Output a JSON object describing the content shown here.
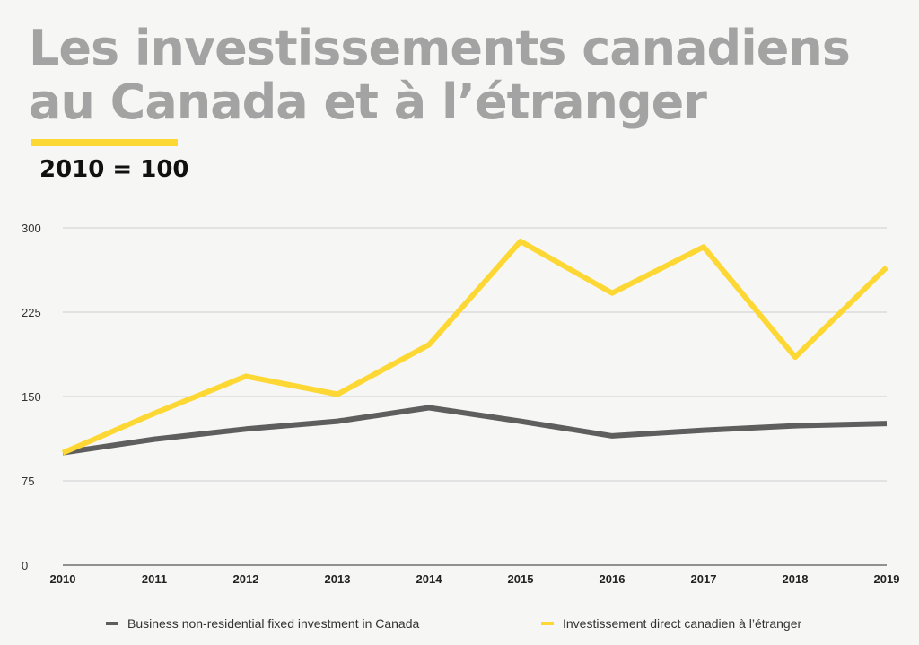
{
  "header": {
    "title_line1": "Les investissements canadiens",
    "title_line2": "au Canada et à l’étranger",
    "subtitle": "2010 = 100"
  },
  "colors": {
    "background": "#f6f6f4",
    "title": "#a3a3a3",
    "accent": "#fdd835",
    "series_gray": "#5e5e5e",
    "series_yellow": "#fdd835"
  },
  "chart_data": {
    "type": "line",
    "x": [
      "2010",
      "2011",
      "2012",
      "2013",
      "2014",
      "2015",
      "2016",
      "2017",
      "2018",
      "2019"
    ],
    "ylim": [
      0,
      300
    ],
    "yticks": [
      0,
      75,
      150,
      225,
      300
    ],
    "grid": true,
    "legend_position": "bottom",
    "series": [
      {
        "name": "Business non-residential fixed investment in Canada",
        "color": "#5e5e5e",
        "values": [
          100,
          112,
          121,
          128,
          140,
          128,
          115,
          120,
          124,
          126
        ]
      },
      {
        "name": "Investissement direct canadien à l’étranger",
        "color": "#fdd835",
        "values": [
          100,
          135,
          168,
          152,
          196,
          288,
          242,
          283,
          185,
          265
        ]
      }
    ]
  }
}
